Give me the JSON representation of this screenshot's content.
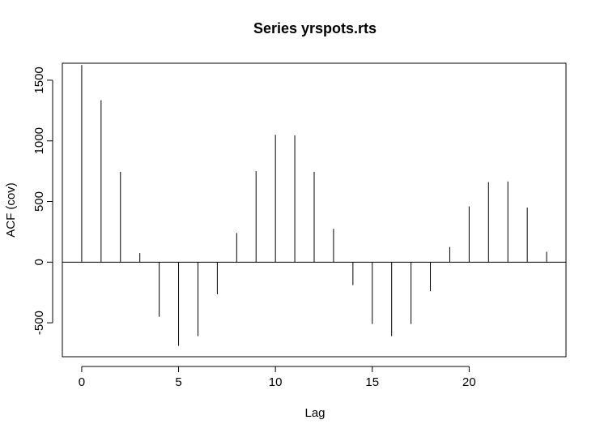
{
  "chart_data": {
    "type": "bar",
    "subtype": "acf-spikes",
    "title": "Series  yrspots.rts",
    "xlabel": "Lag",
    "ylabel": "ACF (cov)",
    "xlim": [
      -1,
      25
    ],
    "ylim": [
      -780,
      1640
    ],
    "xticks": [
      0,
      5,
      10,
      15,
      20
    ],
    "yticks": [
      -500,
      0,
      500,
      1000,
      1500
    ],
    "zero_line": true,
    "grid": false,
    "color": "#000000",
    "lags": [
      0,
      1,
      2,
      3,
      4,
      5,
      6,
      7,
      8,
      9,
      10,
      11,
      12,
      13,
      14,
      15,
      16,
      17,
      18,
      19,
      20,
      21,
      22,
      23,
      24
    ],
    "values": [
      1625,
      1335,
      745,
      75,
      -450,
      -690,
      -610,
      -265,
      240,
      750,
      1050,
      1045,
      745,
      275,
      -190,
      -510,
      -610,
      -510,
      -240,
      125,
      460,
      660,
      665,
      450,
      85
    ]
  }
}
